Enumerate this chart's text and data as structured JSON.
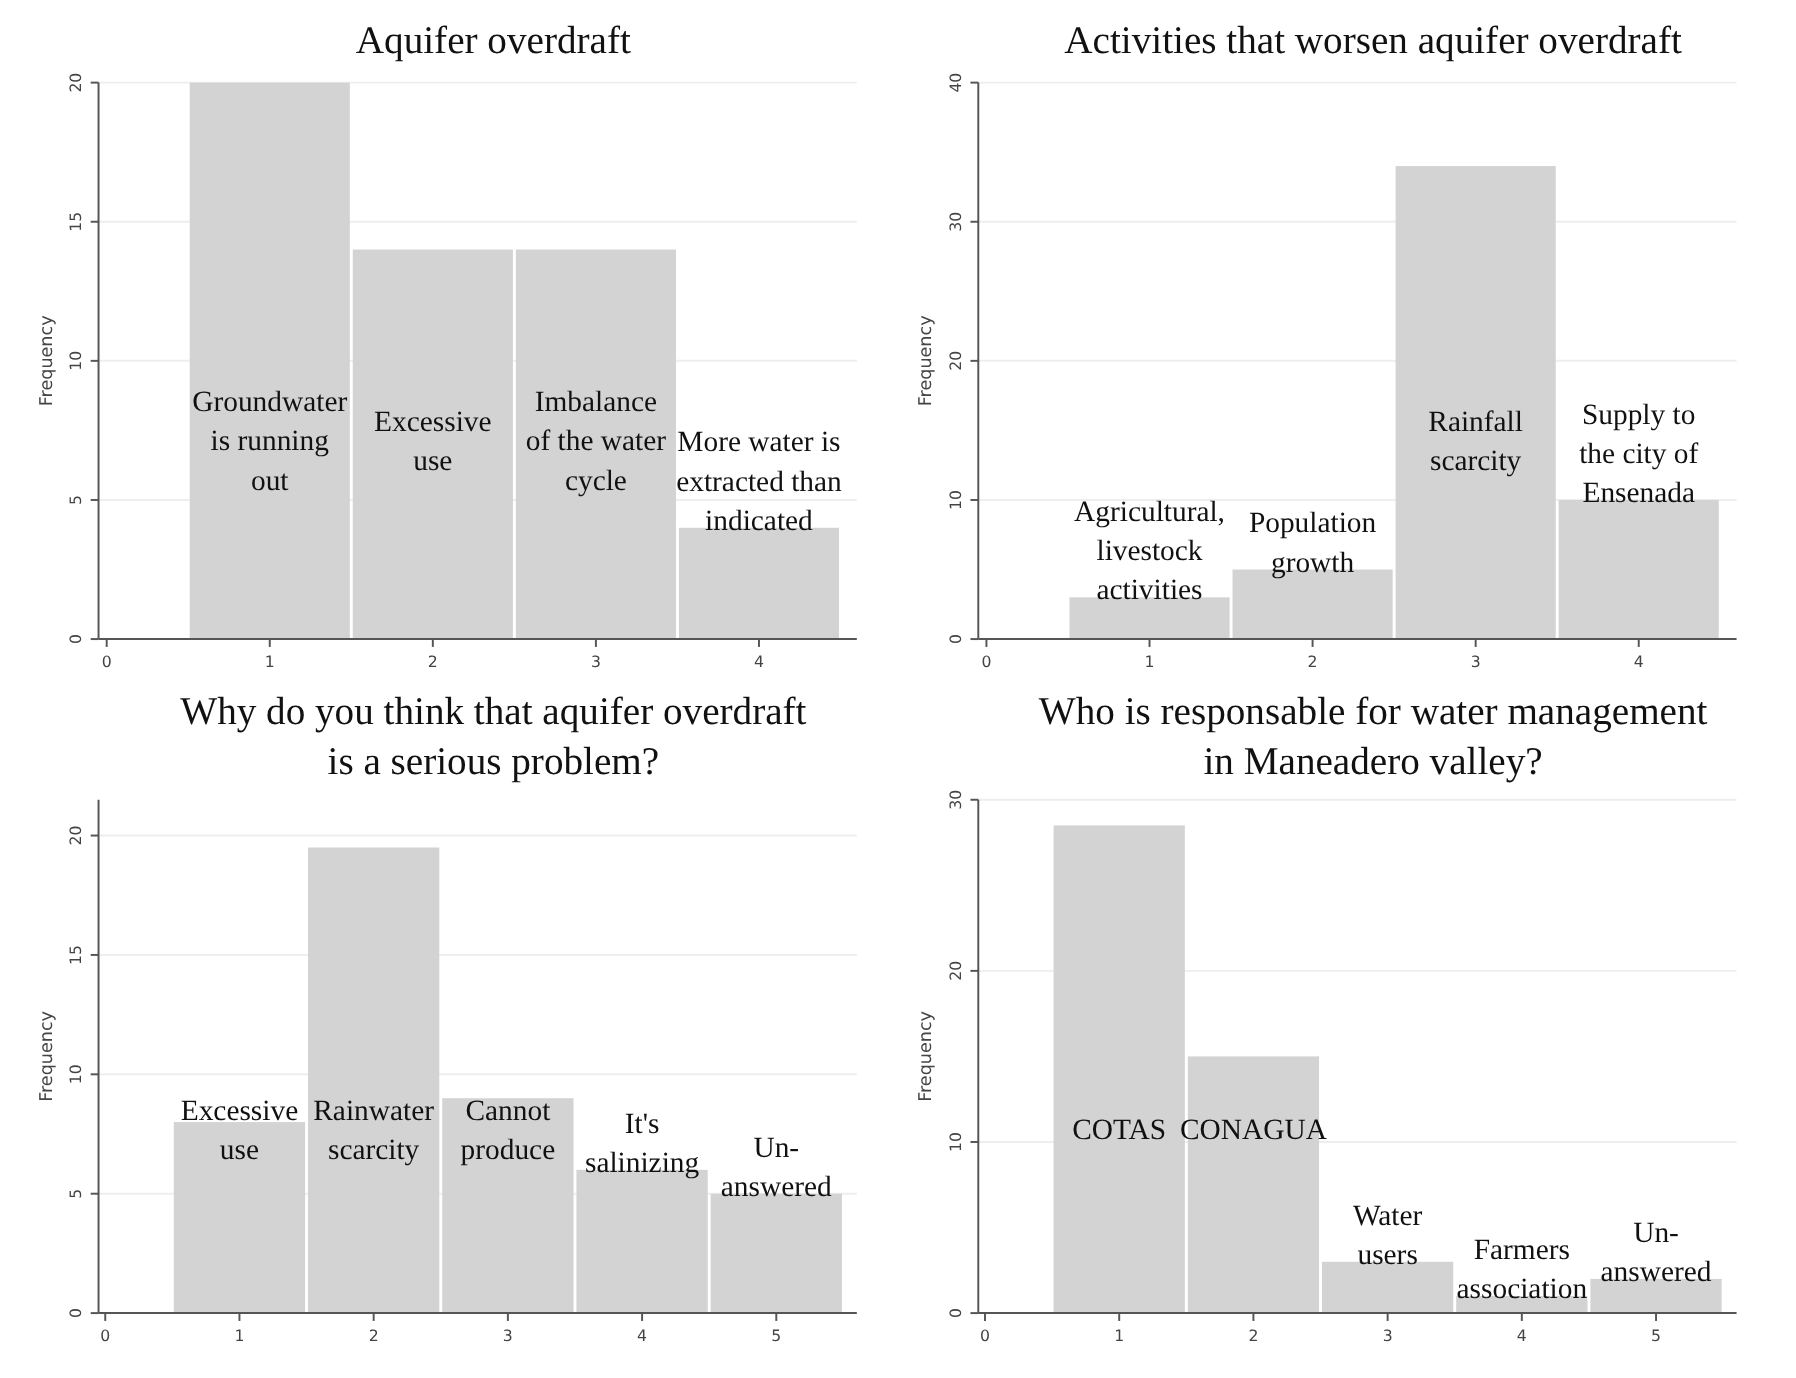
{
  "chart_data": [
    {
      "type": "histogram",
      "title": "Aquifer overdraft",
      "ylabel": "Frequency",
      "bins": [
        0.5,
        1.5,
        2.5,
        3.5,
        4.5
      ],
      "values": [
        20,
        14,
        14,
        4
      ],
      "color": "#d3d3d3",
      "xlim": [
        -0.05,
        4.6
      ],
      "xticks": [
        0,
        1,
        2,
        3,
        4
      ],
      "ylim": [
        0,
        20
      ],
      "yticks": [
        0,
        5,
        10,
        15,
        20
      ],
      "grid": "y",
      "annotations": [
        "Groundwater\nis running\nout",
        "Excessive\nuse",
        "Imbalance\nof the water\ncycle",
        "More water is\nextracted than\nindicated"
      ]
    },
    {
      "type": "histogram",
      "title": "Activities that worsen aquifer overdraft",
      "ylabel": "Frequency",
      "bins": [
        0.5,
        1.5,
        2.5,
        3.5,
        4.5
      ],
      "values": [
        3,
        5,
        34,
        10
      ],
      "color": "#d3d3d3",
      "xlim": [
        -0.05,
        4.6
      ],
      "xticks": [
        0,
        1,
        2,
        3,
        4
      ],
      "ylim": [
        0,
        40
      ],
      "yticks": [
        0,
        10,
        20,
        30,
        40
      ],
      "grid": "y",
      "annotations": [
        "Agricultural,\nlivestock\nactivities",
        "Population\ngrowth",
        "Rainfall\nscarcity",
        "Supply to\nthe city of\nEnsenada"
      ]
    },
    {
      "type": "histogram",
      "title": "Why do you think that aquifer overdraft\nis a serious problem?",
      "ylabel": "Frequency",
      "bins": [
        0.5,
        1.5,
        2.5,
        3.5,
        4.5,
        5.5
      ],
      "values": [
        8,
        19.5,
        9,
        6,
        5
      ],
      "color": "#d3d3d3",
      "xlim": [
        -0.05,
        5.6
      ],
      "xticks": [
        0,
        1,
        2,
        3,
        4,
        5
      ],
      "ylim": [
        0,
        21.5
      ],
      "yticks": [
        0,
        5,
        10,
        15,
        20
      ],
      "grid": "y",
      "annotations": [
        "Excessive\nuse",
        "Rainwater\nscarcity",
        "Cannot\nproduce",
        "It's\nsalinizing",
        "Un-\nanswered"
      ]
    },
    {
      "type": "histogram",
      "title": "Who is responsable for water management\nin Maneadero valley?",
      "ylabel": "Frequency",
      "bins": [
        0.5,
        1.5,
        2.5,
        3.5,
        4.5,
        5.5
      ],
      "values": [
        28.5,
        15,
        3,
        1,
        2
      ],
      "color": "#d3d3d3",
      "xlim": [
        -0.05,
        5.6
      ],
      "xticks": [
        0,
        1,
        2,
        3,
        4,
        5
      ],
      "ylim": [
        0,
        30
      ],
      "yticks": [
        0,
        10,
        20,
        30
      ],
      "grid": "y",
      "annotations": [
        "COTAS",
        "CONAGUA",
        "Water\nusers",
        "Farmers\nassociation",
        "Un-\nanswered"
      ]
    }
  ]
}
